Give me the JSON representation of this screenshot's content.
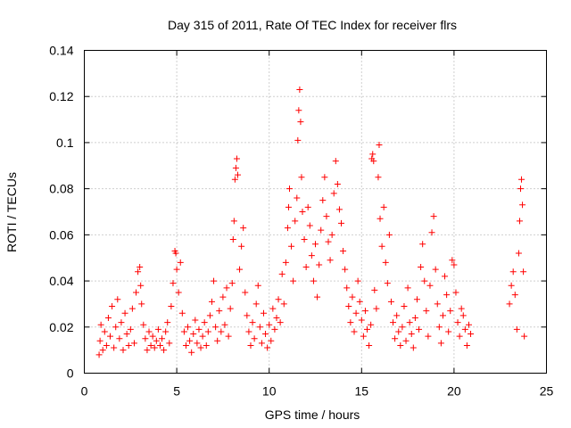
{
  "chart_data": {
    "type": "scatter",
    "title": "Day 315 of 2011, Rate Of TEC Index for receiver flrs",
    "xlabel": "GPS time / hours",
    "ylabel": "ROTI / TECUs",
    "xlim": [
      0,
      25
    ],
    "ylim": [
      0,
      0.14
    ],
    "xticks": [
      0,
      5,
      10,
      15,
      20,
      25
    ],
    "xtick_labels": [
      "0",
      "5",
      "10",
      "15",
      "20",
      "25"
    ],
    "yticks": [
      0,
      0.02,
      0.04,
      0.06,
      0.08,
      0.1,
      0.12,
      0.14
    ],
    "ytick_labels": [
      "0",
      "0.02",
      "0.04",
      "0.06",
      "0.08",
      "0.1",
      "0.12",
      "0.14"
    ],
    "grid": true,
    "marker": "+",
    "color": "#ff0000",
    "series": [
      {
        "name": "ROTI",
        "points": [
          [
            0.8,
            0.008
          ],
          [
            0.85,
            0.014
          ],
          [
            0.9,
            0.021
          ],
          [
            1.0,
            0.01
          ],
          [
            1.1,
            0.018
          ],
          [
            1.2,
            0.012
          ],
          [
            1.3,
            0.024
          ],
          [
            1.4,
            0.016
          ],
          [
            1.5,
            0.029
          ],
          [
            1.6,
            0.011
          ],
          [
            1.7,
            0.02
          ],
          [
            1.8,
            0.032
          ],
          [
            1.9,
            0.015
          ],
          [
            2.0,
            0.022
          ],
          [
            2.1,
            0.01
          ],
          [
            2.2,
            0.026
          ],
          [
            2.3,
            0.017
          ],
          [
            2.4,
            0.012
          ],
          [
            2.5,
            0.019
          ],
          [
            2.6,
            0.028
          ],
          [
            2.7,
            0.013
          ],
          [
            2.8,
            0.035
          ],
          [
            2.9,
            0.044
          ],
          [
            3.0,
            0.046
          ],
          [
            3.05,
            0.038
          ],
          [
            3.1,
            0.03
          ],
          [
            3.2,
            0.021
          ],
          [
            3.3,
            0.015
          ],
          [
            3.4,
            0.01
          ],
          [
            3.5,
            0.018
          ],
          [
            3.6,
            0.012
          ],
          [
            3.7,
            0.016
          ],
          [
            3.8,
            0.011
          ],
          [
            3.9,
            0.014
          ],
          [
            4.0,
            0.019
          ],
          [
            4.1,
            0.012
          ],
          [
            4.2,
            0.015
          ],
          [
            4.3,
            0.01
          ],
          [
            4.4,
            0.018
          ],
          [
            4.5,
            0.022
          ],
          [
            4.6,
            0.013
          ],
          [
            4.7,
            0.029
          ],
          [
            4.8,
            0.039
          ],
          [
            4.9,
            0.053
          ],
          [
            4.95,
            0.052
          ],
          [
            5.0,
            0.045
          ],
          [
            5.1,
            0.035
          ],
          [
            5.2,
            0.048
          ],
          [
            5.3,
            0.026
          ],
          [
            5.4,
            0.018
          ],
          [
            5.5,
            0.012
          ],
          [
            5.6,
            0.02
          ],
          [
            5.7,
            0.014
          ],
          [
            5.8,
            0.009
          ],
          [
            5.9,
            0.017
          ],
          [
            6.0,
            0.023
          ],
          [
            6.1,
            0.013
          ],
          [
            6.2,
            0.019
          ],
          [
            6.3,
            0.011
          ],
          [
            6.4,
            0.016
          ],
          [
            6.5,
            0.022
          ],
          [
            6.6,
            0.012
          ],
          [
            6.7,
            0.018
          ],
          [
            6.8,
            0.025
          ],
          [
            6.9,
            0.031
          ],
          [
            7.0,
            0.04
          ],
          [
            7.1,
            0.02
          ],
          [
            7.2,
            0.014
          ],
          [
            7.3,
            0.027
          ],
          [
            7.4,
            0.018
          ],
          [
            7.5,
            0.033
          ],
          [
            7.6,
            0.021
          ],
          [
            7.7,
            0.037
          ],
          [
            7.8,
            0.016
          ],
          [
            7.9,
            0.028
          ],
          [
            8.0,
            0.039
          ],
          [
            8.05,
            0.058
          ],
          [
            8.1,
            0.066
          ],
          [
            8.15,
            0.084
          ],
          [
            8.2,
            0.089
          ],
          [
            8.25,
            0.093
          ],
          [
            8.3,
            0.086
          ],
          [
            8.4,
            0.045
          ],
          [
            8.5,
            0.055
          ],
          [
            8.6,
            0.063
          ],
          [
            8.7,
            0.035
          ],
          [
            8.8,
            0.025
          ],
          [
            8.9,
            0.018
          ],
          [
            9.0,
            0.012
          ],
          [
            9.1,
            0.022
          ],
          [
            9.2,
            0.015
          ],
          [
            9.3,
            0.03
          ],
          [
            9.4,
            0.038
          ],
          [
            9.5,
            0.02
          ],
          [
            9.6,
            0.013
          ],
          [
            9.7,
            0.026
          ],
          [
            9.8,
            0.017
          ],
          [
            9.9,
            0.011
          ],
          [
            10.0,
            0.021
          ],
          [
            10.1,
            0.014
          ],
          [
            10.2,
            0.028
          ],
          [
            10.3,
            0.019
          ],
          [
            10.4,
            0.024
          ],
          [
            10.5,
            0.032
          ],
          [
            10.6,
            0.022
          ],
          [
            10.7,
            0.043
          ],
          [
            10.8,
            0.03
          ],
          [
            10.9,
            0.048
          ],
          [
            11.0,
            0.063
          ],
          [
            11.05,
            0.072
          ],
          [
            11.1,
            0.08
          ],
          [
            11.2,
            0.055
          ],
          [
            11.3,
            0.04
          ],
          [
            11.4,
            0.066
          ],
          [
            11.5,
            0.076
          ],
          [
            11.55,
            0.101
          ],
          [
            11.6,
            0.114
          ],
          [
            11.65,
            0.123
          ],
          [
            11.7,
            0.109
          ],
          [
            11.75,
            0.085
          ],
          [
            11.8,
            0.07
          ],
          [
            11.9,
            0.058
          ],
          [
            12.0,
            0.046
          ],
          [
            12.1,
            0.072
          ],
          [
            12.2,
            0.064
          ],
          [
            12.3,
            0.051
          ],
          [
            12.4,
            0.04
          ],
          [
            12.5,
            0.056
          ],
          [
            12.6,
            0.033
          ],
          [
            12.7,
            0.047
          ],
          [
            12.8,
            0.062
          ],
          [
            12.9,
            0.075
          ],
          [
            13.0,
            0.085
          ],
          [
            13.1,
            0.068
          ],
          [
            13.2,
            0.057
          ],
          [
            13.3,
            0.049
          ],
          [
            13.4,
            0.06
          ],
          [
            13.5,
            0.078
          ],
          [
            13.6,
            0.092
          ],
          [
            13.7,
            0.082
          ],
          [
            13.8,
            0.071
          ],
          [
            13.9,
            0.065
          ],
          [
            14.0,
            0.053
          ],
          [
            14.1,
            0.045
          ],
          [
            14.2,
            0.037
          ],
          [
            14.3,
            0.029
          ],
          [
            14.4,
            0.022
          ],
          [
            14.5,
            0.033
          ],
          [
            14.6,
            0.018
          ],
          [
            14.7,
            0.026
          ],
          [
            14.8,
            0.04
          ],
          [
            14.9,
            0.031
          ],
          [
            15.0,
            0.023
          ],
          [
            15.1,
            0.016
          ],
          [
            15.2,
            0.027
          ],
          [
            15.3,
            0.019
          ],
          [
            15.4,
            0.012
          ],
          [
            15.5,
            0.021
          ],
          [
            15.55,
            0.093
          ],
          [
            15.6,
            0.095
          ],
          [
            15.65,
            0.092
          ],
          [
            15.7,
            0.036
          ],
          [
            15.8,
            0.028
          ],
          [
            15.9,
            0.085
          ],
          [
            15.95,
            0.099
          ],
          [
            16.0,
            0.067
          ],
          [
            16.1,
            0.055
          ],
          [
            16.2,
            0.072
          ],
          [
            16.3,
            0.048
          ],
          [
            16.4,
            0.039
          ],
          [
            16.5,
            0.06
          ],
          [
            16.6,
            0.031
          ],
          [
            16.7,
            0.022
          ],
          [
            16.8,
            0.015
          ],
          [
            16.9,
            0.025
          ],
          [
            17.0,
            0.018
          ],
          [
            17.1,
            0.012
          ],
          [
            17.2,
            0.02
          ],
          [
            17.3,
            0.029
          ],
          [
            17.4,
            0.014
          ],
          [
            17.5,
            0.037
          ],
          [
            17.6,
            0.022
          ],
          [
            17.7,
            0.017
          ],
          [
            17.8,
            0.011
          ],
          [
            17.9,
            0.024
          ],
          [
            18.0,
            0.032
          ],
          [
            18.1,
            0.019
          ],
          [
            18.2,
            0.046
          ],
          [
            18.3,
            0.056
          ],
          [
            18.4,
            0.04
          ],
          [
            18.5,
            0.027
          ],
          [
            18.6,
            0.016
          ],
          [
            18.7,
            0.038
          ],
          [
            18.8,
            0.061
          ],
          [
            18.9,
            0.068
          ],
          [
            19.0,
            0.045
          ],
          [
            19.1,
            0.03
          ],
          [
            19.2,
            0.02
          ],
          [
            19.3,
            0.013
          ],
          [
            19.4,
            0.025
          ],
          [
            19.5,
            0.042
          ],
          [
            19.6,
            0.034
          ],
          [
            19.7,
            0.018
          ],
          [
            19.8,
            0.027
          ],
          [
            19.9,
            0.049
          ],
          [
            20.0,
            0.047
          ],
          [
            20.1,
            0.035
          ],
          [
            20.2,
            0.022
          ],
          [
            20.3,
            0.016
          ],
          [
            20.4,
            0.028
          ],
          [
            20.5,
            0.025
          ],
          [
            20.6,
            0.019
          ],
          [
            20.7,
            0.012
          ],
          [
            20.8,
            0.021
          ],
          [
            20.9,
            0.017
          ],
          [
            23.0,
            0.03
          ],
          [
            23.1,
            0.038
          ],
          [
            23.2,
            0.044
          ],
          [
            23.3,
            0.034
          ],
          [
            23.4,
            0.019
          ],
          [
            23.5,
            0.052
          ],
          [
            23.55,
            0.066
          ],
          [
            23.6,
            0.08
          ],
          [
            23.65,
            0.084
          ],
          [
            23.7,
            0.073
          ],
          [
            23.75,
            0.044
          ],
          [
            23.8,
            0.016
          ]
        ]
      }
    ]
  }
}
